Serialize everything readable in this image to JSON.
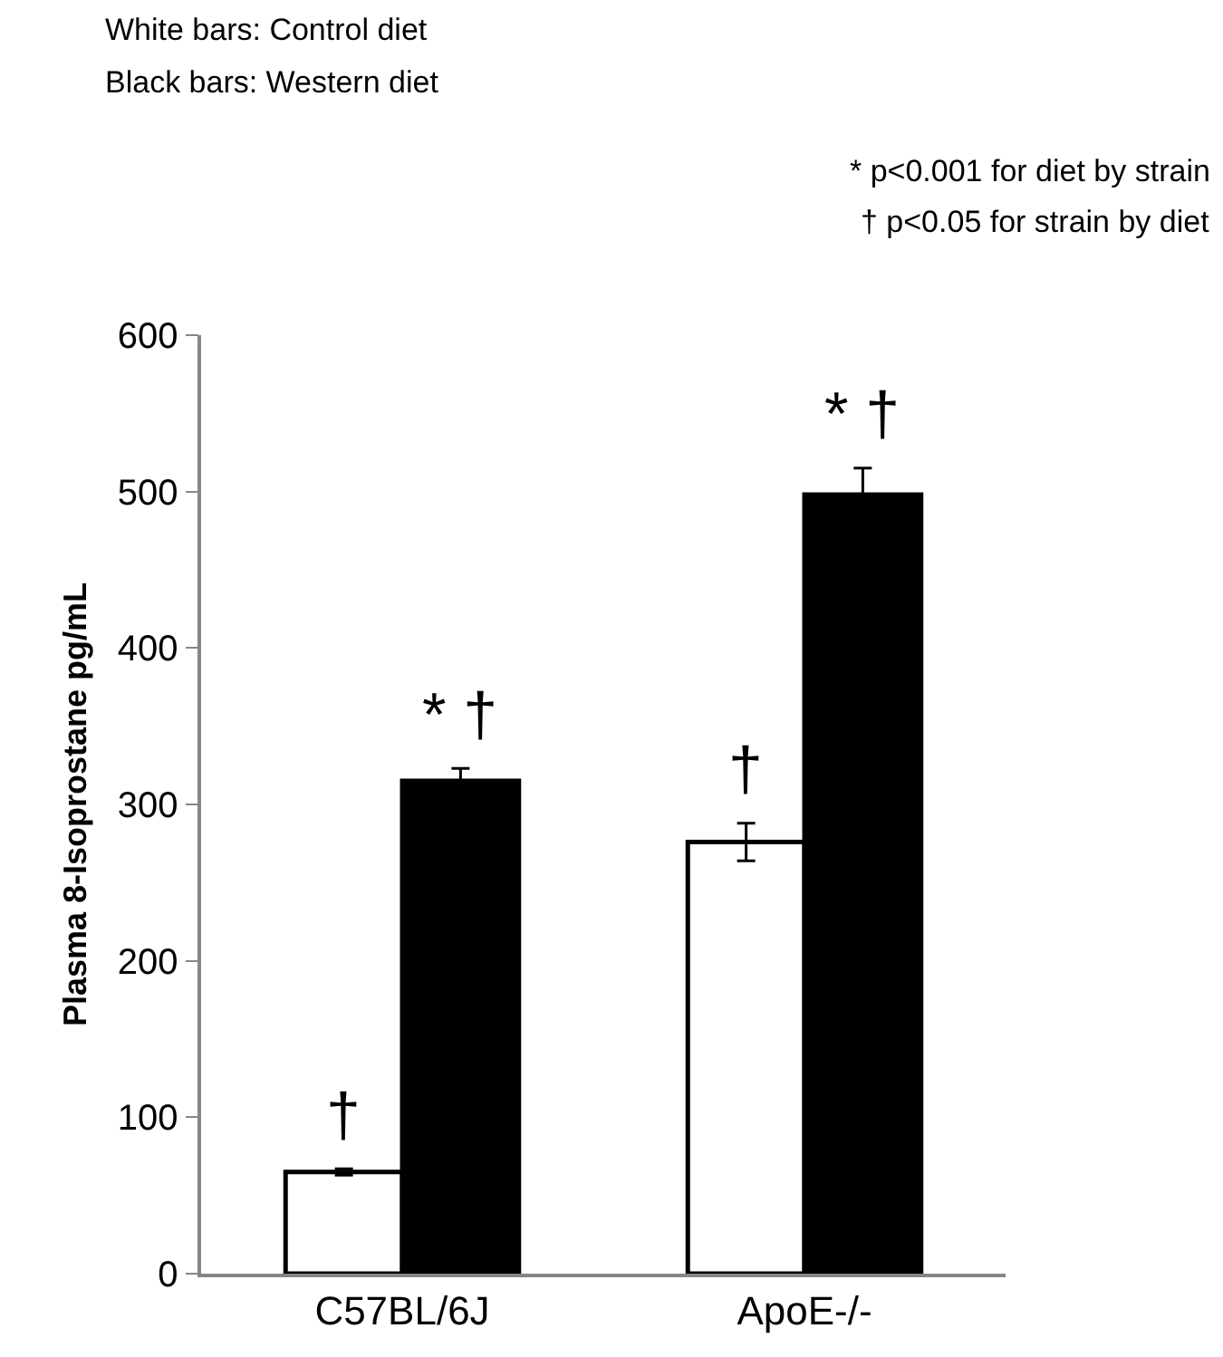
{
  "chart_data": {
    "type": "bar",
    "ylabel": "Plasma 8-Isoprostane pg/mL",
    "categories": [
      "C57BL/6J",
      "ApoE-/-"
    ],
    "series": [
      {
        "color": "#ffffff",
        "values": [
          65,
          276
        ],
        "errors": [
          2,
          12
        ],
        "value_labels": [
          "†",
          "†"
        ]
      },
      {
        "color": "#000000",
        "values": [
          315,
          498
        ],
        "errors": [
          8,
          17
        ],
        "value_labels": [
          "* †",
          "* †"
        ]
      }
    ],
    "ylim": [
      0,
      600
    ],
    "yticks": [
      0,
      100,
      200,
      300,
      400,
      500,
      600
    ],
    "annotations": [
      "White bars: Control diet",
      "Black bars: Western diet",
      "* p<0.001 for diet by strain",
      "† p<0.05 for strain by diet"
    ]
  }
}
